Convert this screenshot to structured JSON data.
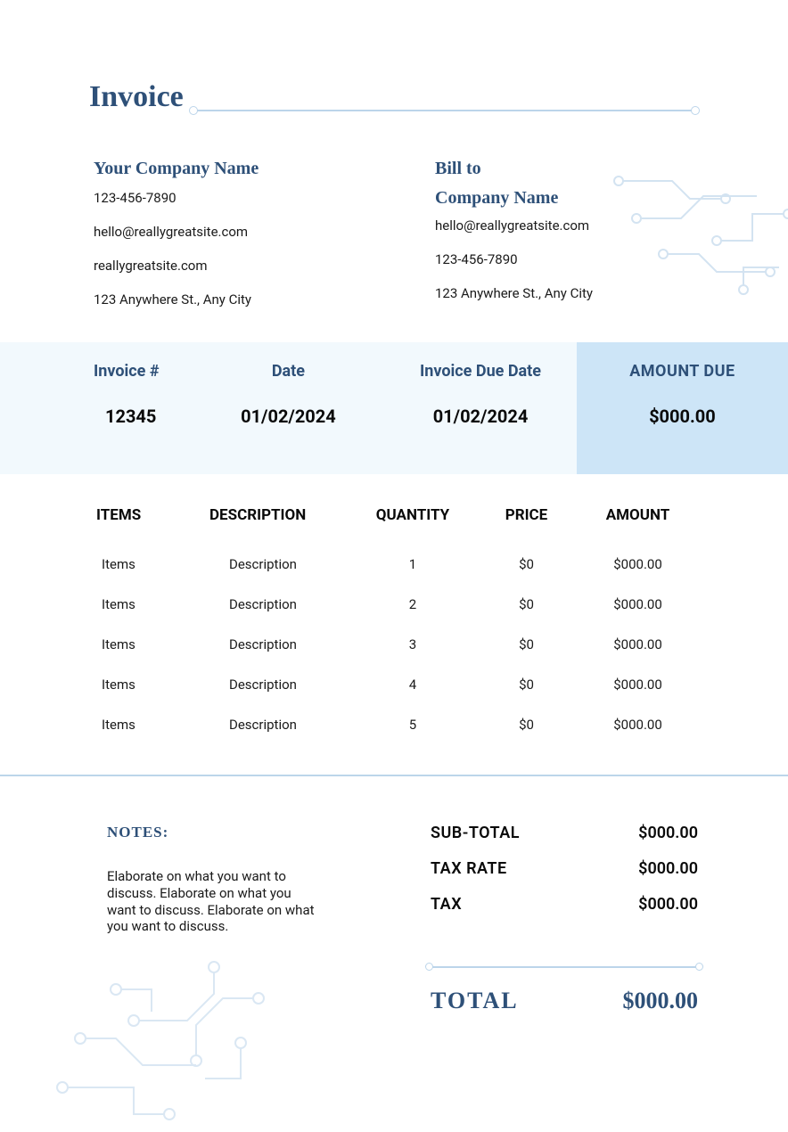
{
  "colors": {
    "primary": "#2e5078",
    "light_bg": "#f2f9fd",
    "accent_bg": "#cde5f7",
    "line": "#bcd5ea",
    "text": "#1a1a1a"
  },
  "header": {
    "title": "Invoice"
  },
  "from": {
    "company_name": "Your Company Name",
    "phone": "123-456-7890",
    "email": "hello@reallygreatsite.com",
    "website": "reallygreatsite.com",
    "address": "123 Anywhere St., Any City"
  },
  "to": {
    "bill_to_label": "Bill to",
    "company_name": "Company Name",
    "email": "hello@reallygreatsite.com",
    "phone": "123-456-7890",
    "address": "123 Anywhere St., Any City"
  },
  "invoice_bar": {
    "number_label": "Invoice #",
    "number_value": "12345",
    "date_label": "Date",
    "date_value": "01/02/2024",
    "due_label": "Invoice Due Date",
    "due_value": "01/02/2024",
    "amount_due_label": "AMOUNT DUE",
    "amount_due_value": "$000.00"
  },
  "items_table": {
    "headers": {
      "items": "ITEMS",
      "description": "DESCRIPTION",
      "quantity": "QUANTITY",
      "price": "PRICE",
      "amount": "AMOUNT"
    },
    "rows": [
      {
        "item": "Items",
        "description": "Description",
        "quantity": "1",
        "price": "$0",
        "amount": "$000.00"
      },
      {
        "item": "Items",
        "description": "Description",
        "quantity": "2",
        "price": "$0",
        "amount": "$000.00"
      },
      {
        "item": "Items",
        "description": "Description",
        "quantity": "3",
        "price": "$0",
        "amount": "$000.00"
      },
      {
        "item": "Items",
        "description": "Description",
        "quantity": "4",
        "price": "$0",
        "amount": "$000.00"
      },
      {
        "item": "Items",
        "description": "Description",
        "quantity": "5",
        "price": "$0",
        "amount": "$000.00"
      }
    ]
  },
  "notes": {
    "heading": "NOTES:",
    "body": "Elaborate on what you want to discuss. Elaborate on what you want to discuss.  Elaborate on what you want to discuss."
  },
  "totals": {
    "subtotal_label": "SUB-TOTAL",
    "subtotal_value": "$000.00",
    "tax_rate_label": "TAX RATE",
    "tax_rate_value": "$000.00",
    "tax_label": "TAX",
    "tax_value": "$000.00",
    "total_label": "TOTAL",
    "total_value": "$000.00"
  }
}
